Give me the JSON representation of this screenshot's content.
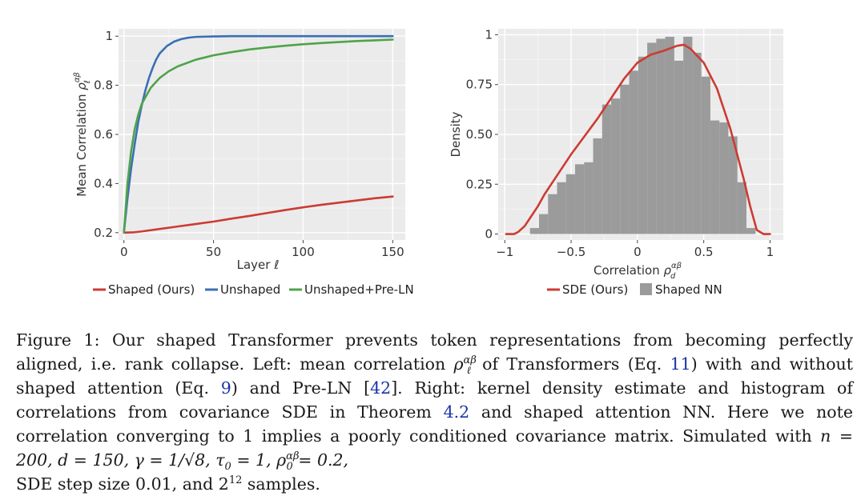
{
  "chart_data": [
    {
      "type": "line",
      "ylabel": "Mean Correlation ρℓαβ",
      "xlabel": "Layer ℓ",
      "xlim": [
        -3,
        157
      ],
      "ylim": [
        0.17,
        1.03
      ],
      "xticks": [
        0,
        50,
        100,
        150
      ],
      "xtick_labels": [
        "0",
        "50",
        "100",
        "150"
      ],
      "yticks": [
        0.2,
        0.4,
        0.6,
        0.8,
        1.0
      ],
      "ytick_labels": [
        "0.2",
        "0.4",
        "0.6",
        "0.8",
        "1"
      ],
      "grid": true,
      "legend_placement": "bottom",
      "series": [
        {
          "name": "Shaped (Ours)",
          "color": "#cc3b33",
          "x": [
            0,
            5,
            10,
            20,
            30,
            40,
            50,
            60,
            70,
            80,
            90,
            100,
            110,
            120,
            130,
            140,
            150
          ],
          "y": [
            0.2,
            0.201,
            0.205,
            0.215,
            0.225,
            0.235,
            0.245,
            0.257,
            0.268,
            0.28,
            0.292,
            0.303,
            0.313,
            0.322,
            0.331,
            0.34,
            0.347
          ]
        },
        {
          "name": "Unshaped",
          "color": "#3b6fb6",
          "x": [
            0,
            2,
            4,
            6,
            8,
            10,
            12,
            14,
            16,
            18,
            20,
            24,
            28,
            32,
            36,
            40,
            50,
            60,
            80,
            100,
            150
          ],
          "y": [
            0.2,
            0.34,
            0.46,
            0.56,
            0.65,
            0.72,
            0.78,
            0.83,
            0.87,
            0.905,
            0.93,
            0.96,
            0.978,
            0.988,
            0.994,
            0.997,
            0.999,
            1.0,
            1.0,
            1.0,
            1.0
          ]
        },
        {
          "name": "Unshaped+Pre-LN",
          "color": "#4fa34a",
          "x": [
            0,
            1,
            2,
            4,
            6,
            8,
            10,
            15,
            20,
            25,
            30,
            40,
            50,
            60,
            70,
            80,
            90,
            100,
            110,
            120,
            130,
            140,
            150
          ],
          "y": [
            0.2,
            0.3,
            0.4,
            0.53,
            0.62,
            0.68,
            0.725,
            0.79,
            0.83,
            0.857,
            0.877,
            0.904,
            0.922,
            0.935,
            0.946,
            0.954,
            0.961,
            0.967,
            0.972,
            0.976,
            0.98,
            0.983,
            0.986
          ]
        }
      ]
    },
    {
      "type": "bar",
      "ylabel": "Density",
      "xlabel": "Correlation ρdαβ",
      "xlim": [
        -1.05,
        1.1
      ],
      "ylim": [
        -0.03,
        1.03
      ],
      "xticks": [
        -1,
        -0.5,
        0,
        0.5,
        1
      ],
      "xtick_labels": [
        "−1",
        "−0.5",
        "0",
        "0.5",
        "1"
      ],
      "yticks": [
        0,
        0.25,
        0.5,
        0.75,
        1
      ],
      "ytick_labels": [
        "0",
        "0.25",
        "0.50",
        "0.75",
        "1"
      ],
      "grid": true,
      "legend_placement": "bottom",
      "histogram": {
        "name": "Shaped NN",
        "color": "#9b9b9b",
        "bin_width": 0.068,
        "bin_starts": [
          -0.81,
          -0.742,
          -0.674,
          -0.606,
          -0.538,
          -0.47,
          -0.402,
          -0.334,
          -0.266,
          -0.198,
          -0.13,
          -0.062,
          0.006,
          0.074,
          0.142,
          0.21,
          0.278,
          0.346,
          0.414,
          0.482,
          0.55,
          0.618,
          0.686,
          0.754,
          0.822
        ],
        "values": [
          0.03,
          0.1,
          0.2,
          0.26,
          0.3,
          0.35,
          0.36,
          0.48,
          0.65,
          0.68,
          0.75,
          0.82,
          0.89,
          0.96,
          0.98,
          0.99,
          0.87,
          0.99,
          0.91,
          0.79,
          0.57,
          0.56,
          0.49,
          0.26,
          0.03
        ]
      },
      "series": [
        {
          "name": "SDE (Ours)",
          "color": "#cc3b33",
          "x": [
            -0.99,
            -0.93,
            -0.9,
            -0.85,
            -0.8,
            -0.75,
            -0.7,
            -0.6,
            -0.5,
            -0.4,
            -0.3,
            -0.2,
            -0.1,
            0.0,
            0.1,
            0.2,
            0.3,
            0.35,
            0.4,
            0.5,
            0.6,
            0.65,
            0.7,
            0.8,
            0.85,
            0.9,
            0.95,
            1.0
          ],
          "y": [
            0.0,
            0.0,
            0.01,
            0.04,
            0.09,
            0.14,
            0.2,
            0.3,
            0.4,
            0.49,
            0.58,
            0.68,
            0.78,
            0.86,
            0.9,
            0.92,
            0.945,
            0.95,
            0.93,
            0.86,
            0.73,
            0.63,
            0.53,
            0.28,
            0.14,
            0.02,
            0.0,
            0.0
          ]
        }
      ]
    }
  ],
  "caption": {
    "label": "Figure 1:",
    "text1": "Our shaped Transformer prevents token representations from becoming perfectly aligned, i.e. rank collapse. Left: mean correlation ",
    "rho": "ρ",
    "rho_sup": "αβ",
    "rho_sub": "ℓ",
    "text2": " of Transformers (Eq. ",
    "ref_eq11": "11",
    "text3": ") with and without shaped attention (Eq. ",
    "ref_eq9": "9",
    "text4": ") and Pre-LN [",
    "ref_42": "42",
    "text5": "]. Right: kernel density estimate and histogram of correlations from covariance SDE in Theorem ",
    "ref_thm": "4.2",
    "text6": " and shaped attention NN. Here we note correlation converging to 1 implies a poorly conditioned covariance matrix. Simulated with ",
    "sim_params": "n = 200, d = 150, γ = 1/√8, τ",
    "tau_sub": "0",
    "sim_params2": " = 1, ρ",
    "rho0_sup": "αβ",
    "rho0_sub": "0",
    "sim_params3": " = 0.2,",
    "text7": "SDE step size 0.01, and 2",
    "exp": "12",
    "text8": " samples."
  }
}
